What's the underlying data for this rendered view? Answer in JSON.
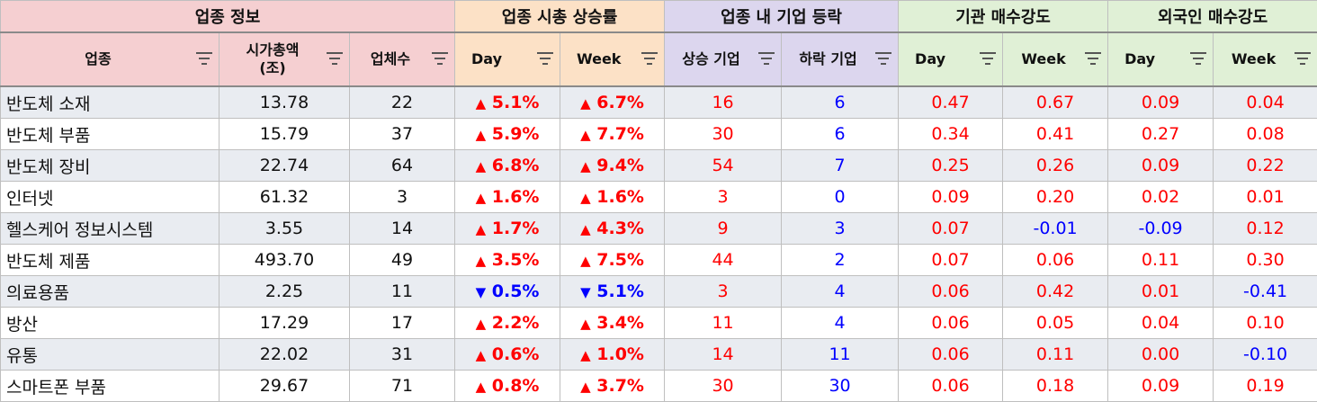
{
  "groups": {
    "info": "업종 정보",
    "cap_change": "업종 시총 상승률",
    "rise_fall": "업종 내 기업 등락",
    "inst": "기관 매수강도",
    "foreign": "외국인 매수강도"
  },
  "headers": {
    "sector": "업종",
    "market_cap_line1": "시가총액",
    "market_cap_line2": "(조)",
    "company_count": "업체수",
    "cap_day": "Day",
    "cap_week": "Week",
    "rising": "상승 기업",
    "falling": "하락 기업",
    "inst_day": "Day",
    "inst_week": "Week",
    "for_day": "Day",
    "for_week": "Week"
  },
  "icons": {
    "filter": "filter-icon",
    "up": "triangle-up-icon",
    "down": "triangle-down-icon"
  },
  "colors": {
    "positive": "#ff0000",
    "negative": "#0000ff"
  },
  "rows": [
    {
      "sector": "반도체 소재",
      "cap": "13.78",
      "count": "22",
      "day": "5.1%",
      "day_arrow": "▲",
      "week": "6.7%",
      "week_arrow": "▲",
      "rise": "16",
      "fall": "6",
      "inst_day": "0.47",
      "inst_week": "0.67",
      "for_day": "0.09",
      "for_week": "0.04"
    },
    {
      "sector": "반도체 부품",
      "cap": "15.79",
      "count": "37",
      "day": "5.9%",
      "day_arrow": "▲",
      "week": "7.7%",
      "week_arrow": "▲",
      "rise": "30",
      "fall": "6",
      "inst_day": "0.34",
      "inst_week": "0.41",
      "for_day": "0.27",
      "for_week": "0.08"
    },
    {
      "sector": "반도체 장비",
      "cap": "22.74",
      "count": "64",
      "day": "6.8%",
      "day_arrow": "▲",
      "week": "9.4%",
      "week_arrow": "▲",
      "rise": "54",
      "fall": "7",
      "inst_day": "0.25",
      "inst_week": "0.26",
      "for_day": "0.09",
      "for_week": "0.22"
    },
    {
      "sector": "인터넷",
      "cap": "61.32",
      "count": "3",
      "day": "1.6%",
      "day_arrow": "▲",
      "week": "1.6%",
      "week_arrow": "▲",
      "rise": "3",
      "fall": "0",
      "inst_day": "0.09",
      "inst_week": "0.20",
      "for_day": "0.02",
      "for_week": "0.01"
    },
    {
      "sector": "헬스케어 정보시스템",
      "cap": "3.55",
      "count": "14",
      "day": "1.7%",
      "day_arrow": "▲",
      "week": "4.3%",
      "week_arrow": "▲",
      "rise": "9",
      "fall": "3",
      "inst_day": "0.07",
      "inst_week": "-0.01",
      "for_day": "-0.09",
      "for_week": "0.12"
    },
    {
      "sector": "반도체 제품",
      "cap": "493.70",
      "count": "49",
      "day": "3.5%",
      "day_arrow": "▲",
      "week": "7.5%",
      "week_arrow": "▲",
      "rise": "44",
      "fall": "2",
      "inst_day": "0.07",
      "inst_week": "0.06",
      "for_day": "0.11",
      "for_week": "0.30"
    },
    {
      "sector": "의료용품",
      "cap": "2.25",
      "count": "11",
      "day": "0.5%",
      "day_arrow": "▼",
      "week": "5.1%",
      "week_arrow": "▼",
      "rise": "3",
      "fall": "4",
      "inst_day": "0.06",
      "inst_week": "0.42",
      "for_day": "0.01",
      "for_week": "-0.41"
    },
    {
      "sector": "방산",
      "cap": "17.29",
      "count": "17",
      "day": "2.2%",
      "day_arrow": "▲",
      "week": "3.4%",
      "week_arrow": "▲",
      "rise": "11",
      "fall": "4",
      "inst_day": "0.06",
      "inst_week": "0.05",
      "for_day": "0.04",
      "for_week": "0.10"
    },
    {
      "sector": "유통",
      "cap": "22.02",
      "count": "31",
      "day": "0.6%",
      "day_arrow": "▲",
      "week": "1.0%",
      "week_arrow": "▲",
      "rise": "14",
      "fall": "11",
      "inst_day": "0.06",
      "inst_week": "0.11",
      "for_day": "0.00",
      "for_week": "-0.10"
    },
    {
      "sector": "스마트폰 부품",
      "cap": "29.67",
      "count": "71",
      "day": "0.8%",
      "day_arrow": "▲",
      "week": "3.7%",
      "week_arrow": "▲",
      "rise": "30",
      "fall": "30",
      "inst_day": "0.06",
      "inst_week": "0.18",
      "for_day": "0.09",
      "for_week": "0.19"
    }
  ]
}
